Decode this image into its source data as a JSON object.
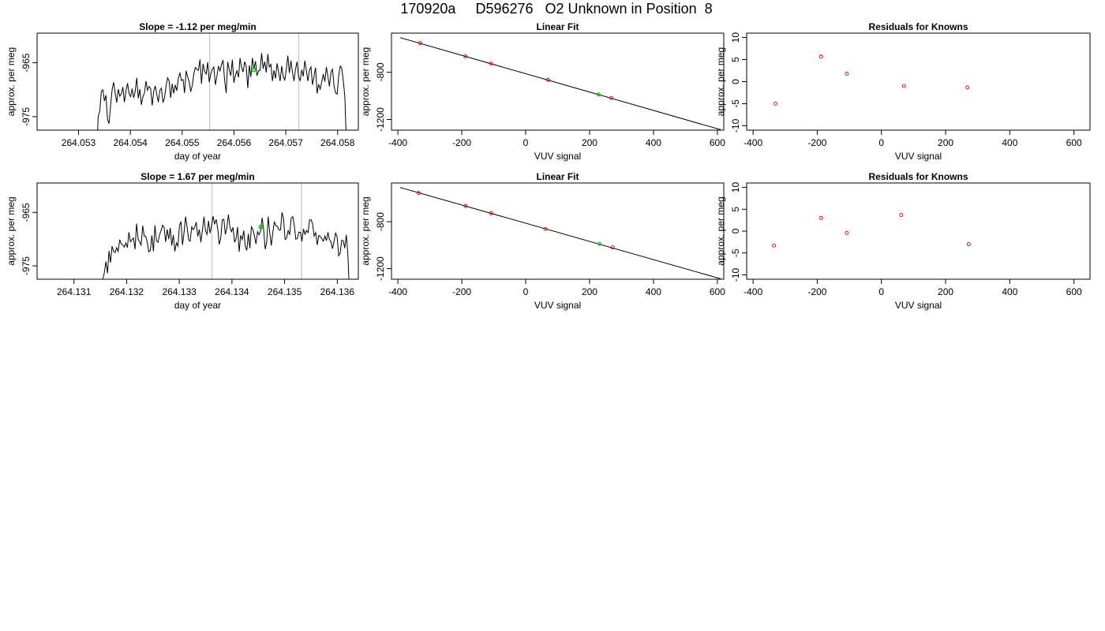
{
  "header": {
    "title": "170920a     D596276   O2 Unknown in Position  8"
  },
  "chart_data": [
    {
      "type": "line",
      "title": "Slope =  -1.12  per meg/min",
      "xlabel": "day of year",
      "ylabel": "approx. per meg",
      "xlim": [
        264.0522,
        264.0584
      ],
      "ylim": [
        -977.5,
        -959.5
      ],
      "xticks": [
        "264.053",
        "264.054",
        "264.055",
        "264.056",
        "264.057",
        "264.058"
      ],
      "yticks": [
        "-975",
        "-965"
      ],
      "vlines": [
        264.05553,
        264.05725
      ],
      "trace": {
        "x_start": 264.05335,
        "x_end": 264.05817,
        "values": [
          -982,
          -975,
          -974,
          -970.3,
          -970,
          -972.1,
          -971,
          -975.5,
          -976.3,
          -973,
          -970,
          -968.6,
          -970.6,
          -972.4,
          -969.9,
          -971.2,
          -970.8,
          -969.5,
          -972.3,
          -970.2,
          -968.8,
          -970.7,
          -971.3,
          -969.8,
          -971.5,
          -970.3,
          -967.8,
          -971.6,
          -969.9,
          -972.8,
          -971.3,
          -970.6,
          -968.4,
          -970.1,
          -969.4,
          -969.8,
          -972.9,
          -970.2,
          -969.3,
          -970.9,
          -972.3,
          -970.1,
          -969.7,
          -972.4,
          -971.5,
          -969.3,
          -967.8,
          -968.4,
          -971.5,
          -968.9,
          -970.7,
          -969.1,
          -970.2,
          -967.8,
          -966.9,
          -968.3,
          -968.1,
          -970.6,
          -966.5,
          -967.6,
          -968.5,
          -970.4,
          -969.2,
          -967.1,
          -965.9,
          -966.2,
          -966.4,
          -964.4,
          -968.9,
          -965.2,
          -966.6,
          -967.1,
          -964.9,
          -968.6,
          -967.1,
          -966.2,
          -965.8,
          -969.1,
          -967.5,
          -965.6,
          -966.6,
          -965.3,
          -964.5,
          -968.3,
          -970.6,
          -964.8,
          -966.3,
          -967.4,
          -964.4,
          -968.7,
          -967.3,
          -966.5,
          -967.7,
          -964.1,
          -965.9,
          -966.7,
          -964.8,
          -965.6,
          -969.7,
          -965.5,
          -967.6,
          -964.1,
          -966.2,
          -964.7,
          -967.4,
          -966.5,
          -966.4,
          -963.2,
          -966.1,
          -964.8,
          -966.8,
          -963.4,
          -965.8,
          -965.3,
          -968.4,
          -966.4,
          -967.9,
          -965.1,
          -966.7,
          -968.4,
          -965.6,
          -967.5,
          -968.2,
          -966.2,
          -963.7,
          -966.9,
          -964.6,
          -966.7,
          -968.4,
          -966.2,
          -964.8,
          -967.7,
          -968.3,
          -966.3,
          -967.5,
          -964.6,
          -966.4,
          -968.4,
          -966.4,
          -965.8,
          -969.1,
          -967.5,
          -965.9,
          -970.7,
          -969,
          -969.9,
          -968.5,
          -967.1,
          -968.5,
          -965.8,
          -967.6,
          -969.4,
          -966.7,
          -966.2,
          -969.4,
          -970.6,
          -970.8,
          -967.4,
          -965.6,
          -966,
          -968.4,
          -971.3,
          -980
        ]
      },
      "highlight_point": {
        "x": 264.05638,
        "y": -966.3,
        "color": "#00cc00"
      }
    },
    {
      "type": "scatter",
      "title": "Linear Fit",
      "xlabel": "VUV signal",
      "ylabel": "approx. per meg",
      "xlim": [
        -420,
        620
      ],
      "ylim": [
        -1290,
        -470
      ],
      "xticks": [
        -400,
        -200,
        0,
        200,
        400,
        600
      ],
      "yticks": [
        -1200,
        -800
      ],
      "fit_line": {
        "x": [
          -393,
          610
        ],
        "y": [
          -508,
          -1286
        ]
      },
      "knowns": {
        "color": "#cc0000",
        "x": [
          -330,
          -188,
          -108,
          70,
          268
        ],
        "y": [
          -555,
          -666,
          -728,
          -865,
          -1018
        ]
      },
      "unknown": {
        "color": "#00cc00",
        "x": 228,
        "y": -989
      }
    },
    {
      "type": "scatter",
      "title": "Residuals for Knowns",
      "xlabel": "VUV signal",
      "ylabel": "approx. per meg",
      "xlim": [
        -420,
        650
      ],
      "ylim": [
        -11,
        11
      ],
      "xticks": [
        -400,
        -200,
        0,
        200,
        400,
        600
      ],
      "yticks": [
        -10,
        -5,
        0,
        5,
        10
      ],
      "points": {
        "color": "#cc0000",
        "x": [
          -330,
          -188,
          -108,
          70,
          268
        ],
        "y": [
          -5,
          5.7,
          1.8,
          -1,
          -1.3
        ]
      }
    },
    {
      "type": "line",
      "title": "Slope =  1.67  per meg/min",
      "xlabel": "day of year",
      "ylabel": "approx. per meg",
      "xlim": [
        264.1303,
        264.1364
      ],
      "ylim": [
        -977.5,
        -959.5
      ],
      "xticks": [
        "264.131",
        "264.132",
        "264.133",
        "264.134",
        "264.135",
        "264.136"
      ],
      "yticks": [
        "-975",
        "-965"
      ],
      "vlines": [
        264.13362,
        264.13532
      ],
      "trace": {
        "x_start": 264.13152,
        "x_end": 264.13623,
        "values": [
          -980,
          -977.5,
          -976.2,
          -974.2,
          -976.4,
          -972.2,
          -974.4,
          -971.3,
          -972.3,
          -972.5,
          -971.6,
          -972.3,
          -970.1,
          -970.9,
          -971.1,
          -971.5,
          -970.7,
          -971.6,
          -968.7,
          -970.5,
          -970.1,
          -969.8,
          -971.9,
          -967.1,
          -970,
          -970.5,
          -971.1,
          -967.5,
          -969.4,
          -969.5,
          -970.6,
          -972.4,
          -972.1,
          -969.3,
          -972.3,
          -967.4,
          -970.3,
          -970.6,
          -969.2,
          -968.4,
          -967.4,
          -967.8,
          -970.5,
          -968.2,
          -970,
          -967.9,
          -971.2,
          -969.2,
          -972.3,
          -970.7,
          -971.3,
          -967.5,
          -966.7,
          -971.1,
          -968.7,
          -965.8,
          -967.7,
          -970.1,
          -970.4,
          -967.7,
          -968.2,
          -967.8,
          -966.8,
          -969.5,
          -968.2,
          -970.6,
          -968.4,
          -965.8,
          -968.4,
          -969.1,
          -966.6,
          -968.9,
          -967.5,
          -965.7,
          -967.2,
          -966.3,
          -968,
          -971,
          -969.8,
          -966.4,
          -966.3,
          -969.1,
          -967.8,
          -965.4,
          -967.7,
          -968.6,
          -967.8,
          -970.6,
          -969.9,
          -967.7,
          -972.4,
          -969.3,
          -970.1,
          -968.4,
          -971.3,
          -972.1,
          -969,
          -971.7,
          -967.7,
          -968.2,
          -969.4,
          -970.9,
          -968.6,
          -969.2,
          -968.5,
          -966,
          -968.2,
          -971.9,
          -970.6,
          -965.8,
          -968.9,
          -971.2,
          -968.7,
          -966.8,
          -967.5,
          -967.6,
          -968.3,
          -968.3,
          -965,
          -966.1,
          -970.1,
          -969.8,
          -968.4,
          -969.2,
          -966.1,
          -965.8,
          -967.4,
          -970,
          -969.9,
          -968.7,
          -968.7,
          -970.4,
          -968.1,
          -969.1,
          -968.4,
          -968.8,
          -966.4,
          -966.4,
          -967.2,
          -969.4,
          -968.8,
          -971.1,
          -969.3,
          -969.5,
          -969.9,
          -970.4,
          -969.4,
          -970.3,
          -968.7,
          -970.1,
          -970.5,
          -971.8,
          -970.4,
          -968.8,
          -969.6,
          -973.1,
          -972.6,
          -970.2,
          -970.3,
          -971.7,
          -969.2,
          -972.7,
          -980
        ]
      },
      "highlight_point": {
        "x": 264.13455,
        "y": -967.7,
        "color": "#00cc00"
      }
    },
    {
      "type": "scatter",
      "title": "Linear Fit",
      "xlabel": "VUV signal",
      "ylabel": "approx. per meg",
      "xlim": [
        -420,
        620
      ],
      "ylim": [
        -1290,
        -470
      ],
      "xticks": [
        -400,
        -200,
        0,
        200,
        400,
        600
      ],
      "yticks": [
        -1200,
        -800
      ],
      "fit_line": {
        "x": [
          -393,
          610
        ],
        "y": [
          -508,
          -1286
        ]
      },
      "knowns": {
        "color": "#cc0000",
        "x": [
          -335,
          -188,
          -108,
          62,
          272
        ],
        "y": [
          -555,
          -666,
          -728,
          -862,
          -1018
        ]
      },
      "unknown": {
        "color": "#00cc00",
        "x": 231,
        "y": -989
      }
    },
    {
      "type": "scatter",
      "title": "Residuals for Knowns",
      "xlabel": "VUV signal",
      "ylabel": "approx. per meg",
      "xlim": [
        -420,
        650
      ],
      "ylim": [
        -11,
        11
      ],
      "xticks": [
        -400,
        -200,
        0,
        200,
        400,
        600
      ],
      "yticks": [
        -10,
        -5,
        0,
        5,
        10
      ],
      "points": {
        "color": "#cc0000",
        "x": [
          -335,
          -188,
          -108,
          62,
          272
        ],
        "y": [
          -3.3,
          3,
          -0.4,
          3.7,
          -3
        ]
      }
    }
  ]
}
